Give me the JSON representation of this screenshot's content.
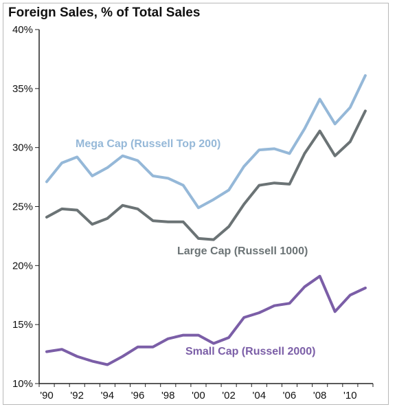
{
  "chart_data": {
    "type": "line",
    "title": "Foreign Sales, % of Total Sales",
    "xlabel": "",
    "ylabel": "",
    "x": [
      1990,
      1991,
      1992,
      1993,
      1994,
      1995,
      1996,
      1997,
      1998,
      1999,
      2000,
      2001,
      2002,
      2003,
      2004,
      2005,
      2006,
      2007,
      2008,
      2009,
      2010,
      2011
    ],
    "xlim": [
      1990,
      2012
    ],
    "x_ticks": [
      {
        "value": 1990,
        "label": "'90"
      },
      {
        "value": 1992,
        "label": "'92"
      },
      {
        "value": 1994,
        "label": "'94"
      },
      {
        "value": 1996,
        "label": "'96"
      },
      {
        "value": 1998,
        "label": "'98"
      },
      {
        "value": 2000,
        "label": "'00"
      },
      {
        "value": 2002,
        "label": "'02"
      },
      {
        "value": 2004,
        "label": "'04"
      },
      {
        "value": 2006,
        "label": "'06"
      },
      {
        "value": 2008,
        "label": "'08"
      },
      {
        "value": 2010,
        "label": "'10"
      }
    ],
    "ylim": [
      10,
      40
    ],
    "y_ticks": [
      {
        "value": 10,
        "label": "10%"
      },
      {
        "value": 15,
        "label": "15%"
      },
      {
        "value": 20,
        "label": "20%"
      },
      {
        "value": 25,
        "label": "25%"
      },
      {
        "value": 30,
        "label": "30%"
      },
      {
        "value": 35,
        "label": "35%"
      },
      {
        "value": 40,
        "label": "40%"
      }
    ],
    "grid": false,
    "legend": "inline labels near each series",
    "series": [
      {
        "name": "Mega Cap (Russell Top 200)",
        "color": "#95b8d8",
        "values": [
          27.1,
          28.7,
          29.2,
          27.6,
          28.3,
          29.3,
          28.9,
          27.6,
          27.4,
          26.8,
          24.9,
          25.6,
          26.4,
          28.4,
          29.8,
          29.9,
          29.5,
          31.6,
          34.1,
          32.0,
          33.4,
          36.1
        ]
      },
      {
        "name": "Large Cap (Russell 1000)",
        "color": "#6b7375",
        "values": [
          24.1,
          24.8,
          24.7,
          23.5,
          24.0,
          25.1,
          24.8,
          23.8,
          23.7,
          23.7,
          22.3,
          22.2,
          23.3,
          25.2,
          26.8,
          27.0,
          26.9,
          29.5,
          31.4,
          29.3,
          30.5,
          33.1
        ]
      },
      {
        "name": "Small Cap (Russell 2000)",
        "color": "#7b5ea7",
        "values": [
          12.7,
          12.9,
          12.3,
          11.9,
          11.6,
          12.3,
          13.1,
          13.1,
          13.8,
          14.1,
          14.1,
          13.4,
          13.9,
          15.6,
          16.0,
          16.6,
          16.8,
          18.2,
          19.1,
          16.1,
          17.5,
          18.1
        ]
      }
    ]
  }
}
